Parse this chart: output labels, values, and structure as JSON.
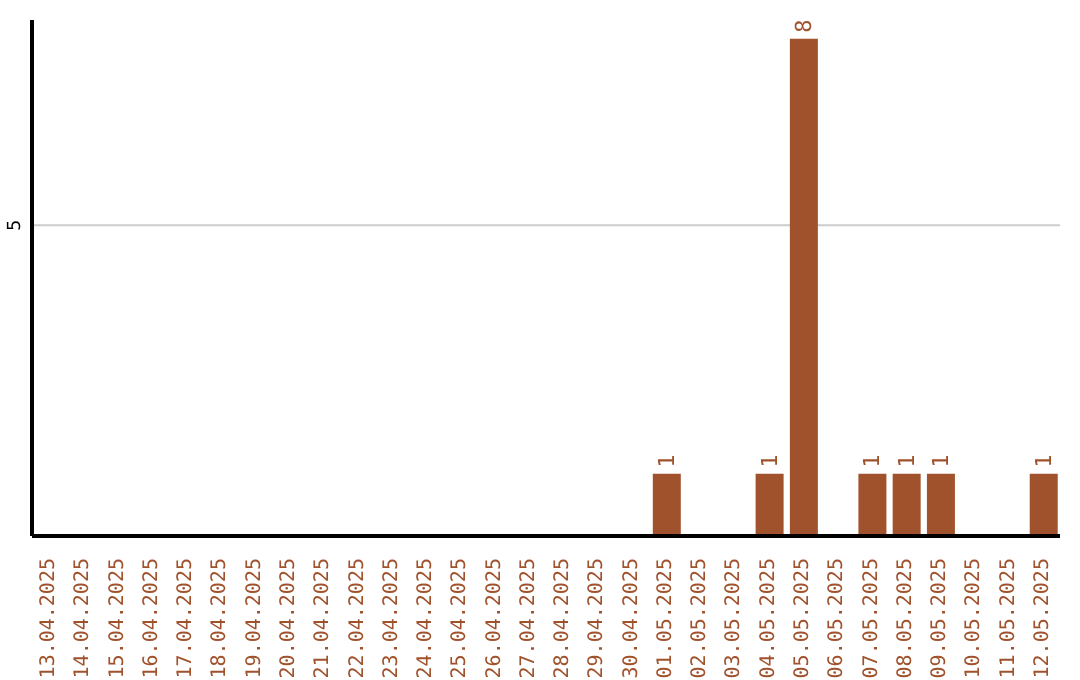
{
  "chart_data": {
    "type": "bar",
    "categories": [
      "13.04.2025",
      "14.04.2025",
      "15.04.2025",
      "16.04.2025",
      "17.04.2025",
      "18.04.2025",
      "19.04.2025",
      "20.04.2025",
      "21.04.2025",
      "22.04.2025",
      "23.04.2025",
      "24.04.2025",
      "25.04.2025",
      "26.04.2025",
      "27.04.2025",
      "28.04.2025",
      "29.04.2025",
      "30.04.2025",
      "01.05.2025",
      "02.05.2025",
      "03.05.2025",
      "04.05.2025",
      "05.05.2025",
      "06.05.2025",
      "07.05.2025",
      "08.05.2025",
      "09.05.2025",
      "10.05.2025",
      "11.05.2025",
      "12.05.2025"
    ],
    "values": [
      null,
      null,
      null,
      null,
      null,
      null,
      null,
      null,
      null,
      null,
      null,
      null,
      null,
      null,
      null,
      null,
      null,
      null,
      1,
      null,
      null,
      1,
      8,
      null,
      1,
      1,
      1,
      null,
      null,
      1
    ],
    "color": "#a0522d",
    "ylim": [
      0,
      8.3
    ],
    "yticks": [
      5
    ],
    "grid": "y",
    "data_labels": true
  }
}
